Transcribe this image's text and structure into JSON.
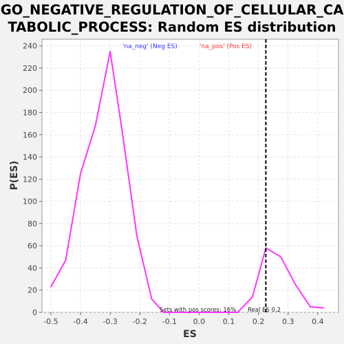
{
  "chart_data": {
    "type": "line",
    "title_lines": [
      "GO_NEGATIVE_REGULATION_OF_CELLULAR_CA",
      "TABOLIC_PROCESS: Random ES distribution"
    ],
    "xlabel": "ES",
    "ylabel": "P(ES)",
    "xlim": [
      -0.53,
      0.47
    ],
    "ylim": [
      0,
      246
    ],
    "x_ticks": [
      -0.5,
      -0.4,
      -0.3,
      -0.2,
      -0.1,
      0.0,
      0.1,
      0.2,
      0.3,
      0.4
    ],
    "x_tick_labels": [
      "-0.5",
      "-0.4",
      "-0.3",
      "-0.2",
      "-0.1",
      "0.0",
      "0.1",
      "0.2",
      "0.3",
      "0.4"
    ],
    "y_ticks": [
      0,
      20,
      40,
      60,
      80,
      100,
      120,
      140,
      160,
      180,
      200,
      220,
      240
    ],
    "y_tick_labels": [
      "0",
      "20",
      "40",
      "60",
      "80",
      "100",
      "120",
      "140",
      "160",
      "180",
      "200",
      "220",
      "240"
    ],
    "grid": true,
    "series": [
      {
        "color": "#ff33ff",
        "x": [
          -0.5,
          -0.45,
          -0.4,
          -0.35,
          -0.3,
          -0.26,
          -0.21,
          -0.16,
          -0.12,
          -0.07,
          -0.02,
          0.03,
          0.08,
          0.13,
          0.18,
          0.225,
          0.275,
          0.325,
          0.375,
          0.42
        ],
        "y": [
          23,
          47,
          125,
          168,
          235,
          164,
          69,
          12,
          0,
          0,
          0,
          0,
          0,
          0,
          14,
          58,
          50,
          25,
          5,
          4
        ]
      }
    ],
    "real_es": 0.225,
    "legend": [
      {
        "text": "'na_neg' (Neg ES)",
        "color": "#3333ff"
      },
      {
        "text": "'na_pos' (Pos ES)",
        "color": "#ff3333"
      }
    ],
    "annotations": {
      "pos_scores": "Sets with pos scores: 16%",
      "real_es": "Real ES 0.2"
    }
  }
}
